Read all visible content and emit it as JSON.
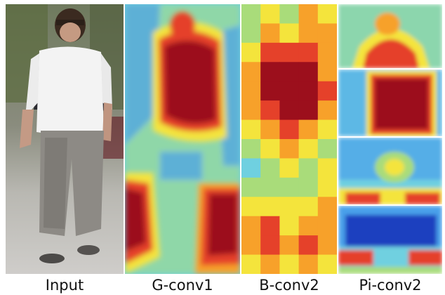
{
  "captions": {
    "input": "Input",
    "g_conv1": "G-conv1",
    "b_conv2": "B-conv2",
    "pi_conv2": "Pi-conv2"
  },
  "colormap": [
    "#1f3fbf",
    "#4aa0ea",
    "#6fd0e0",
    "#a9dc7a",
    "#f4e43c",
    "#f7a12a",
    "#e5412a",
    "#9c0f1c"
  ]
}
